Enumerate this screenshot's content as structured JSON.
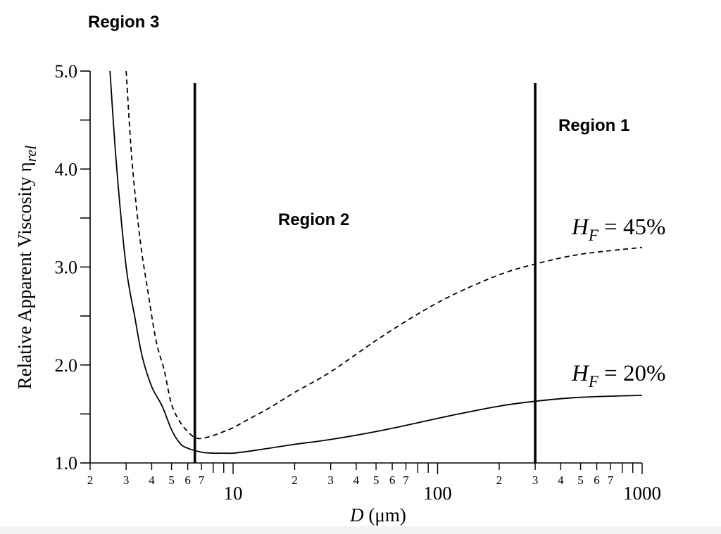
{
  "chart_data": {
    "type": "line",
    "xlabel": "D (μm)",
    "xlabel_var": "D",
    "xlabel_unit": " (μm)",
    "ylabel": "Relative Apparent Viscosity η",
    "ylabel_sub": "rel",
    "xscale": "log",
    "xlim": [
      2,
      1000
    ],
    "ylim": [
      1.0,
      5.0
    ],
    "y_ticks": [
      1.0,
      1.5,
      2.0,
      2.5,
      3.0,
      3.5,
      4.0,
      4.5,
      5.0
    ],
    "y_tick_labels": [
      "1.0",
      "2.0",
      "3.0",
      "4.0",
      "5.0"
    ],
    "x_major_labels": [
      "10",
      "100",
      "1000"
    ],
    "x_minor_labels": [
      "2",
      "3",
      "4",
      "5",
      "6",
      "7",
      "2",
      "3",
      "4",
      "5",
      "6",
      "7",
      "2",
      "3",
      "4",
      "5",
      "6",
      "7"
    ],
    "grid": false,
    "series": [
      {
        "name": "H_F = 20%",
        "label_main": "H",
        "label_sub": "F",
        "label_rest": " = 20%",
        "style": "solid",
        "x": [
          2.5,
          2.7,
          3.0,
          3.3,
          3.6,
          4.0,
          4.5,
          5.0,
          5.5,
          6.0,
          7.0,
          8.0,
          9.0,
          10,
          12,
          15,
          20,
          30,
          50,
          80,
          120,
          200,
          300,
          500,
          1000
        ],
        "y": [
          5.0,
          4.0,
          3.0,
          2.5,
          2.08,
          1.78,
          1.58,
          1.34,
          1.2,
          1.15,
          1.11,
          1.1,
          1.1,
          1.1,
          1.12,
          1.15,
          1.19,
          1.24,
          1.32,
          1.41,
          1.49,
          1.58,
          1.63,
          1.67,
          1.69
        ]
      },
      {
        "name": "H_F = 45%",
        "label_main": "H",
        "label_sub": "F",
        "label_rest": " = 45%",
        "style": "dashed",
        "x": [
          3.0,
          3.2,
          3.5,
          3.8,
          4.2,
          4.6,
          5.0,
          5.5,
          6.0,
          6.5,
          7.0,
          8.0,
          9.0,
          10,
          12,
          15,
          20,
          30,
          50,
          80,
          120,
          200,
          300,
          500,
          1000
        ],
        "y": [
          5.0,
          4.1,
          3.3,
          2.8,
          2.25,
          1.95,
          1.6,
          1.42,
          1.32,
          1.26,
          1.25,
          1.28,
          1.32,
          1.36,
          1.45,
          1.56,
          1.72,
          1.93,
          2.25,
          2.52,
          2.72,
          2.92,
          3.03,
          3.13,
          3.2
        ]
      }
    ],
    "vertical_lines": [
      6.5,
      300
    ],
    "annotations": [
      "Region 3",
      "Region 2",
      "Region 1"
    ]
  }
}
